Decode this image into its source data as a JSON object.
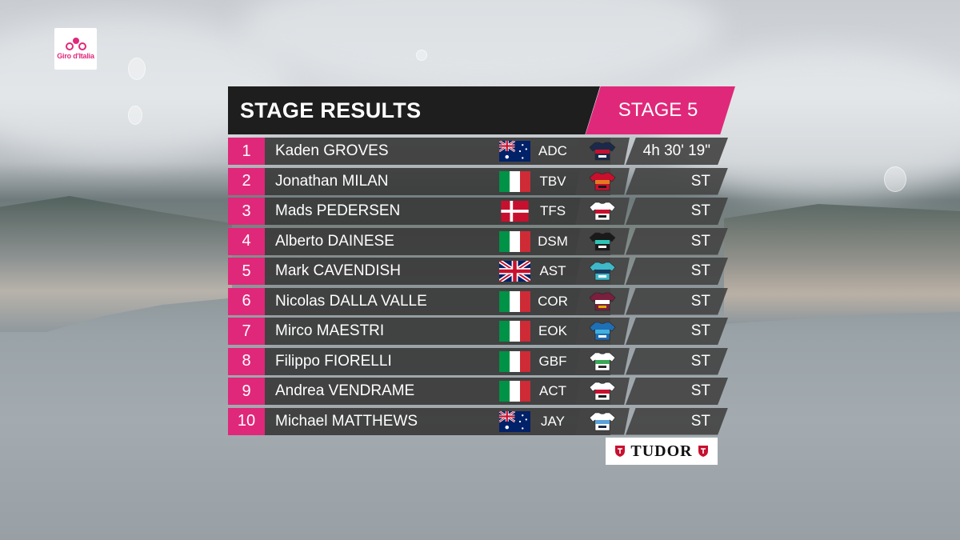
{
  "brand": {
    "logo_text": "Giro d'Italia",
    "sponsor": "TUDOR"
  },
  "header": {
    "title": "STAGE RESULTS",
    "stage": "STAGE 5"
  },
  "colors": {
    "accent": "#e0287a",
    "panel": "#1e1e1e",
    "row": "#3a3a3a"
  },
  "results": [
    {
      "pos": "1",
      "name": "Kaden GROVES",
      "country": "australia-flag",
      "team": "ADC",
      "time": "4h 30' 19\"",
      "jersey": [
        "#1b2a4a",
        "#c8102e",
        "#ffffff"
      ]
    },
    {
      "pos": "2",
      "name": "Jonathan MILAN",
      "country": "italy-flag",
      "team": "TBV",
      "time": "ST",
      "jersey": [
        "#c8102e",
        "#e87722",
        "#1a1a1a"
      ]
    },
    {
      "pos": "3",
      "name": "Mads PEDERSEN",
      "country": "denmark-flag",
      "team": "TFS",
      "time": "ST",
      "jersey": [
        "#ffffff",
        "#c8102e",
        "#1a1a1a"
      ]
    },
    {
      "pos": "4",
      "name": "Alberto DAINESE",
      "country": "italy-flag",
      "team": "DSM",
      "time": "ST",
      "jersey": [
        "#1a1a1a",
        "#2ec4b6",
        "#ffffff"
      ]
    },
    {
      "pos": "5",
      "name": "Mark CAVENDISH",
      "country": "uk-flag",
      "team": "AST",
      "time": "ST",
      "jersey": [
        "#3fb8c9",
        "#1a3a5c",
        "#ffffff"
      ]
    },
    {
      "pos": "6",
      "name": "Nicolas DALLA VALLE",
      "country": "italy-flag",
      "team": "COR",
      "time": "ST",
      "jersey": [
        "#7a1f3d",
        "#ffffff",
        "#e0b000"
      ]
    },
    {
      "pos": "7",
      "name": "Mirco MAESTRI",
      "country": "italy-flag",
      "team": "EOK",
      "time": "ST",
      "jersey": [
        "#1f6fb5",
        "#3fb0e0",
        "#ffffff"
      ]
    },
    {
      "pos": "8",
      "name": "Filippo FIORELLI",
      "country": "italy-flag",
      "team": "GBF",
      "time": "ST",
      "jersey": [
        "#ffffff",
        "#3aa655",
        "#2b2b2b"
      ]
    },
    {
      "pos": "9",
      "name": "Andrea VENDRAME",
      "country": "italy-flag",
      "team": "ACT",
      "time": "ST",
      "jersey": [
        "#ffffff",
        "#c8102e",
        "#1a1a1a"
      ]
    },
    {
      "pos": "10",
      "name": "Michael MATTHEWS",
      "country": "australia-flag",
      "team": "JAY",
      "time": "ST",
      "jersey": [
        "#ffffff",
        "#5aa0d8",
        "#1b2a4a"
      ]
    }
  ]
}
